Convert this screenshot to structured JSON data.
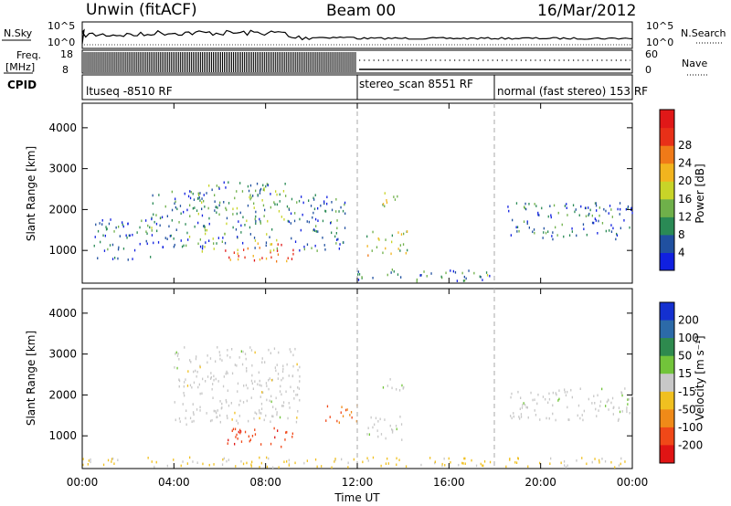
{
  "header": {
    "radar": "Unwin (fitACF)",
    "beam": "Beam 00",
    "date": "16/Mar/2012"
  },
  "top_panels": {
    "nsky_label": "N.Sky",
    "nsky_ticks": [
      "10^5",
      "10^0"
    ],
    "nsearch_label": "N.Search",
    "freq_label": "Freq.",
    "freq_unit": "[MHz]",
    "freq_ticks": [
      "18",
      "8"
    ],
    "nave_label": "Nave",
    "nave_ticks": [
      "60",
      "0"
    ],
    "cpid_label": "CPID",
    "cpid_segments": [
      {
        "start": 0,
        "end": 12,
        "text": "ltuseq -8510 RF"
      },
      {
        "start": 12,
        "end": 18,
        "text": "stereo_scan 8551 RF"
      },
      {
        "start": 18,
        "end": 24,
        "text": "normal (fast stereo) 153 RF"
      }
    ]
  },
  "axes": {
    "xlabel": "Time UT",
    "x_ticks": [
      "00:00",
      "04:00",
      "08:00",
      "12:00",
      "16:00",
      "20:00",
      "00:00"
    ],
    "ylabel": "Slant Range [km]",
    "y_ticks": [
      "1000",
      "2000",
      "3000",
      "4000"
    ]
  },
  "colorbars": {
    "power": {
      "label": "Power [dB]",
      "ticks": [
        "4",
        "8",
        "12",
        "16",
        "20",
        "24",
        "28"
      ],
      "colors": [
        "#1020e0",
        "#2050a0",
        "#2a8a55",
        "#6fb04a",
        "#c8d428",
        "#f2b41e",
        "#f07a18",
        "#e83018",
        "#e01818"
      ]
    },
    "velocity": {
      "label": "Velocity [m s⁻¹]",
      "ticks": [
        "200",
        "100",
        "50",
        "15",
        "-15",
        "-50",
        "-100",
        "-200"
      ],
      "colors": [
        "#1430d0",
        "#2c6aa8",
        "#2e8a4e",
        "#72c43a",
        "#c8c8c8",
        "#f0c020",
        "#f08a18",
        "#f04818",
        "#e01414"
      ]
    }
  },
  "chart_data": [
    {
      "type": "heatmap",
      "name": "power",
      "xlim": [
        0,
        24
      ],
      "ylim": [
        200,
        4600
      ],
      "zlim": [
        0,
        30
      ],
      "clusters": [
        {
          "t0": 6.2,
          "t1": 9.2,
          "r0": 750,
          "r1": 1200,
          "z": 24
        },
        {
          "t0": 5.0,
          "t1": 9.0,
          "r0": 1000,
          "r1": 2700,
          "z": 9
        },
        {
          "t0": 3.0,
          "t1": 5.5,
          "r0": 1100,
          "r1": 2500,
          "z": 7
        },
        {
          "t0": 9.0,
          "t1": 11.5,
          "r0": 1000,
          "r1": 2400,
          "z": 6
        },
        {
          "t0": 0.5,
          "t1": 3.0,
          "r0": 800,
          "r1": 1800,
          "z": 5
        },
        {
          "t0": 12.3,
          "t1": 14.2,
          "r0": 900,
          "r1": 1500,
          "z": 14
        },
        {
          "t0": 13.0,
          "t1": 14.0,
          "r0": 2100,
          "r1": 2500,
          "z": 15
        },
        {
          "t0": 18.5,
          "t1": 24.0,
          "r0": 1300,
          "r1": 2200,
          "z": 6
        },
        {
          "t0": 12.0,
          "t1": 18.0,
          "r0": 260,
          "r1": 560,
          "z": 7
        }
      ]
    },
    {
      "type": "heatmap",
      "name": "velocity",
      "xlim": [
        0,
        24
      ],
      "ylim": [
        200,
        4600
      ],
      "zlim": [
        -250,
        250
      ],
      "clusters": [
        {
          "t0": 6.3,
          "t1": 9.2,
          "r0": 750,
          "r1": 1250,
          "z": -180
        },
        {
          "t0": 4.0,
          "t1": 9.5,
          "r0": 1300,
          "r1": 3200,
          "z": 0
        },
        {
          "t0": 10.5,
          "t1": 12.0,
          "r0": 1350,
          "r1": 1800,
          "z": -140
        },
        {
          "t0": 12.3,
          "t1": 14.0,
          "r0": 900,
          "r1": 1500,
          "z": 5
        },
        {
          "t0": 13.0,
          "t1": 14.0,
          "r0": 2100,
          "r1": 2500,
          "z": 10
        },
        {
          "t0": 18.5,
          "t1": 24.0,
          "r0": 1400,
          "r1": 2200,
          "z": 5
        },
        {
          "t0": 0.0,
          "t1": 24.0,
          "r0": 250,
          "r1": 500,
          "z": -40
        }
      ]
    }
  ]
}
